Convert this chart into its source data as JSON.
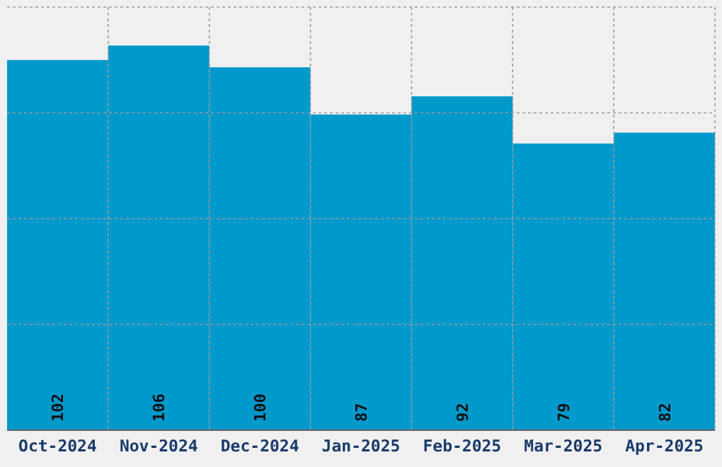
{
  "chart_data": {
    "type": "bar",
    "categories": [
      "Oct-2024",
      "Nov-2024",
      "Dec-2024",
      "Jan-2025",
      "Feb-2025",
      "Mar-2025",
      "Apr-2025"
    ],
    "values": [
      102,
      106,
      100,
      87,
      92,
      79,
      82
    ],
    "color": "#0099cc",
    "data_labels": true,
    "ylim": [
      0,
      116.6
    ],
    "yticks": [
      {
        "value": 29.15,
        "label": null
      },
      {
        "value": 58.3,
        "label": null
      },
      {
        "value": 87.45,
        "label": null
      },
      {
        "value": 116.6,
        "label": null
      }
    ],
    "grid": true,
    "tick_labels": "x"
  }
}
